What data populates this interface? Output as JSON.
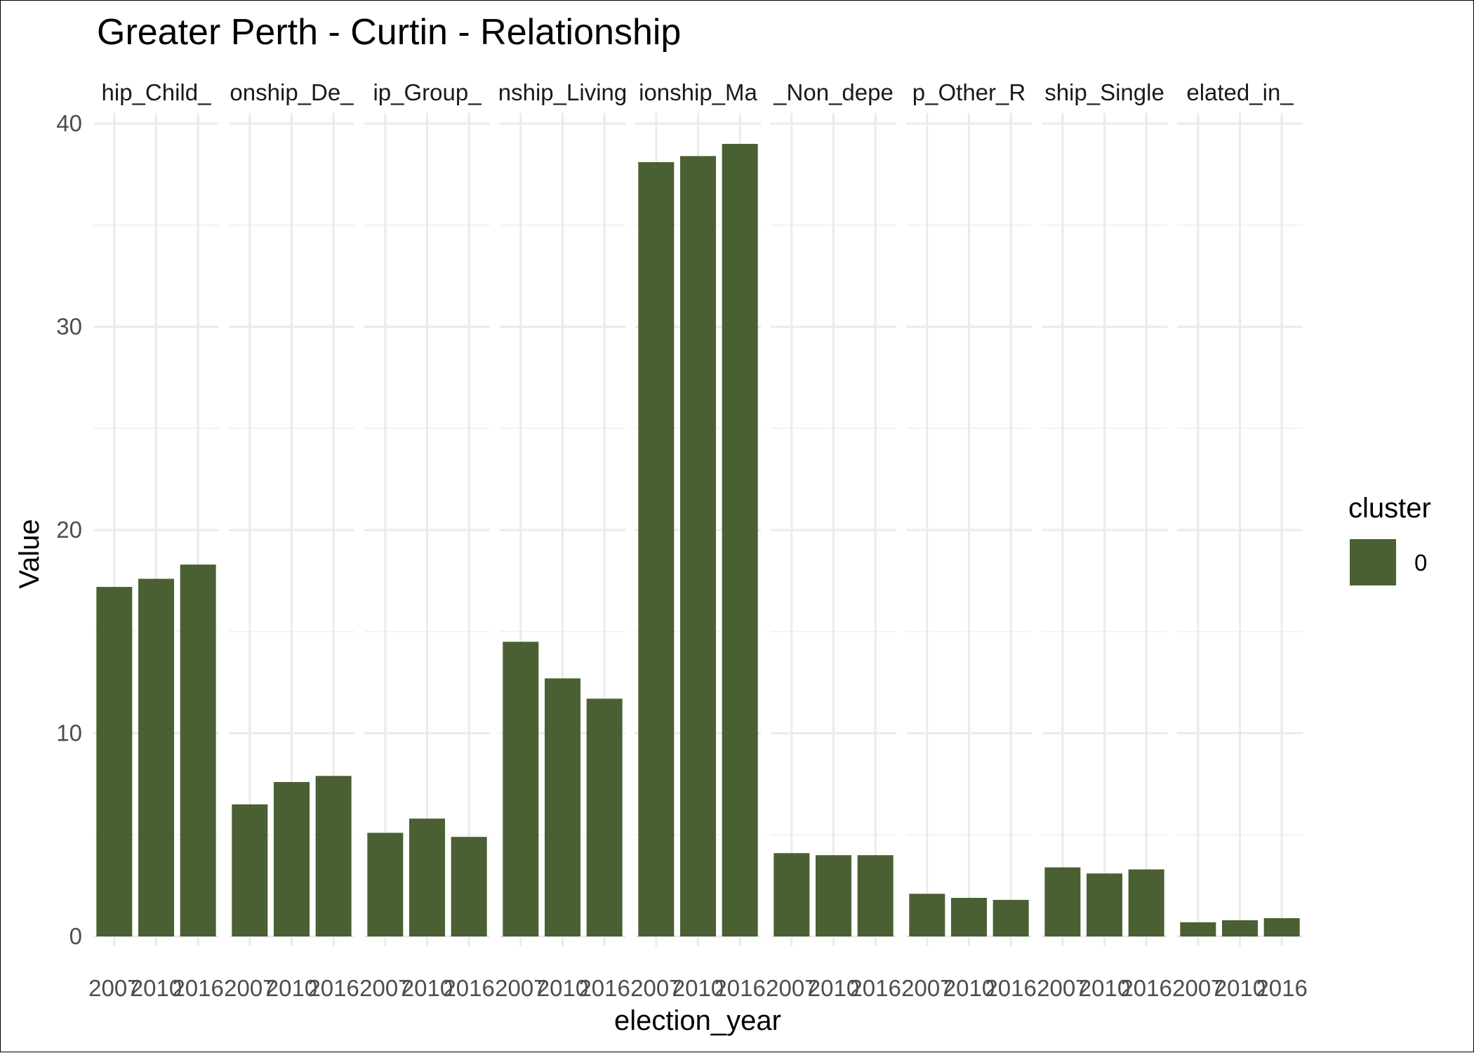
{
  "chart_data": {
    "type": "bar",
    "title": "Greater Perth - Curtin - Relationship",
    "xlabel": "election_year",
    "ylabel": "Value",
    "ylim": [
      0,
      40
    ],
    "yticks": [
      0,
      10,
      20,
      30,
      40
    ],
    "x": [
      "2007",
      "2010",
      "2016"
    ],
    "grid": true,
    "legend": {
      "title": "cluster",
      "position": "right",
      "entries": [
        {
          "label": "0",
          "color": "#4a6032"
        }
      ]
    },
    "bar_color": "#4a6032",
    "facets": [
      {
        "strip": "hip_Child_",
        "values": [
          17.2,
          17.6,
          18.3
        ]
      },
      {
        "strip": "onship_De_",
        "values": [
          6.5,
          7.6,
          7.9
        ]
      },
      {
        "strip": "ip_Group_",
        "values": [
          5.1,
          5.8,
          4.9
        ]
      },
      {
        "strip": "nship_Living",
        "values": [
          14.5,
          12.7,
          11.7
        ]
      },
      {
        "strip": "ionship_Ma",
        "values": [
          38.1,
          38.4,
          39.0
        ]
      },
      {
        "strip": "_Non_depe",
        "values": [
          4.1,
          4.0,
          4.0
        ]
      },
      {
        "strip": "p_Other_R",
        "values": [
          2.1,
          1.9,
          1.8
        ]
      },
      {
        "strip": "ship_Single",
        "values": [
          3.4,
          3.1,
          3.3
        ]
      },
      {
        "strip": "elated_in_",
        "values": [
          0.7,
          0.8,
          0.9
        ]
      }
    ]
  }
}
